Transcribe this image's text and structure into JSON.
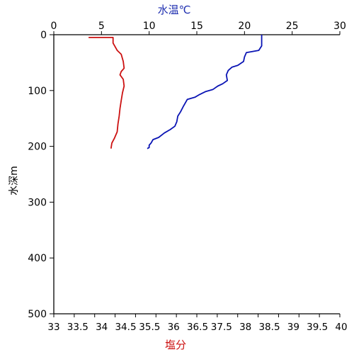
{
  "chart_data": {
    "type": "line",
    "top_axis": {
      "label": "水温℃",
      "color": "#1f2fb0",
      "range": [
        0,
        30
      ],
      "ticks": [
        0,
        5,
        10,
        15,
        20,
        25,
        30
      ]
    },
    "bottom_axis": {
      "label": "塩分",
      "color": "#cc1111",
      "range": [
        33,
        40
      ],
      "ticks": [
        33,
        33.5,
        34,
        34.5,
        35,
        35.5,
        36,
        36.5,
        37,
        37.5,
        38,
        38.5,
        39,
        39.5,
        40
      ],
      "tick_labels": [
        "33",
        "33.5",
        "34",
        "34.5",
        "35.5",
        "36",
        "36.5",
        "37.5",
        "38",
        "38.5",
        "39",
        "39.5",
        "40"
      ]
    },
    "left_axis": {
      "label": "水深m",
      "range": [
        0,
        500
      ],
      "inverted": true,
      "ticks": [
        0,
        100,
        200,
        300,
        400,
        500
      ]
    },
    "series": [
      {
        "axis": "top",
        "color": "#0a14b4",
        "points": [
          [
            21.8,
            0
          ],
          [
            21.8,
            20
          ],
          [
            21.5,
            28
          ],
          [
            20.2,
            32
          ],
          [
            20.0,
            40
          ],
          [
            19.9,
            48
          ],
          [
            19.3,
            55
          ],
          [
            18.7,
            58
          ],
          [
            18.3,
            64
          ],
          [
            18.1,
            72
          ],
          [
            18.2,
            82
          ],
          [
            17.7,
            88
          ],
          [
            17.2,
            92
          ],
          [
            16.7,
            98
          ],
          [
            15.9,
            102
          ],
          [
            15.2,
            108
          ],
          [
            14.8,
            112
          ],
          [
            14.0,
            116
          ],
          [
            13.6,
            128
          ],
          [
            13.3,
            138
          ],
          [
            13.0,
            146
          ],
          [
            12.9,
            156
          ],
          [
            12.7,
            164
          ],
          [
            12.2,
            170
          ],
          [
            11.6,
            176
          ],
          [
            11.0,
            184
          ],
          [
            10.4,
            188
          ],
          [
            10.2,
            194
          ],
          [
            10.0,
            198
          ],
          [
            10.0,
            202
          ],
          [
            9.8,
            204
          ]
        ]
      },
      {
        "axis": "bottom",
        "color": "#cc1111",
        "points": [
          [
            33.85,
            5
          ],
          [
            34.45,
            5
          ],
          [
            34.45,
            15
          ],
          [
            34.55,
            28
          ],
          [
            34.65,
            35
          ],
          [
            34.7,
            48
          ],
          [
            34.72,
            60
          ],
          [
            34.65,
            66
          ],
          [
            34.62,
            72
          ],
          [
            34.7,
            80
          ],
          [
            34.72,
            92
          ],
          [
            34.68,
            104
          ],
          [
            34.65,
            118
          ],
          [
            34.62,
            132
          ],
          [
            34.6,
            146
          ],
          [
            34.57,
            160
          ],
          [
            34.55,
            174
          ],
          [
            34.48,
            186
          ],
          [
            34.42,
            194
          ],
          [
            34.4,
            204
          ]
        ]
      }
    ]
  }
}
